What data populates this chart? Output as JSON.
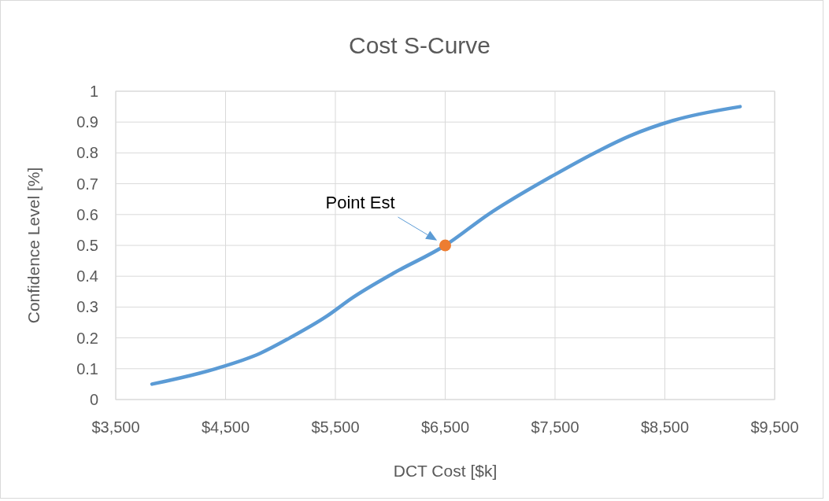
{
  "chart_data": {
    "type": "line",
    "title": "Cost S-Curve",
    "xlabel": "DCT Cost [$k]",
    "ylabel": "Confidence Level [%]",
    "xlim": [
      3500,
      9500
    ],
    "xticks": [
      {
        "value": 3500,
        "label": "$3,500"
      },
      {
        "value": 4500,
        "label": "$4,500"
      },
      {
        "value": 5500,
        "label": "$5,500"
      },
      {
        "value": 6500,
        "label": "$6,500"
      },
      {
        "value": 7500,
        "label": "$7,500"
      },
      {
        "value": 8500,
        "label": "$8,500"
      },
      {
        "value": 9500,
        "label": "$9,500"
      }
    ],
    "ylim": [
      0,
      1
    ],
    "yticks": [
      0,
      0.1,
      0.2,
      0.3,
      0.4,
      0.5,
      0.6,
      0.7,
      0.8,
      0.9,
      1
    ],
    "grid": true,
    "series": [
      {
        "color": "#5b9bd5",
        "marker": "none",
        "x": [
          3830,
          4410,
          4815,
          5085,
          5420,
          5655,
          6030,
          6500,
          6890,
          7500,
          7860,
          8180,
          8575,
          9185
        ],
        "values": [
          0.05,
          0.1,
          0.15,
          0.2,
          0.27,
          0.33,
          0.41,
          0.5,
          0.6,
          0.73,
          0.8,
          0.855,
          0.905,
          0.95
        ]
      },
      {
        "type": "scatter",
        "color": "#ed7d31",
        "marker": "circle",
        "x": [
          6500
        ],
        "values": [
          0.5
        ]
      }
    ],
    "annotations": [
      "Point Est"
    ]
  }
}
